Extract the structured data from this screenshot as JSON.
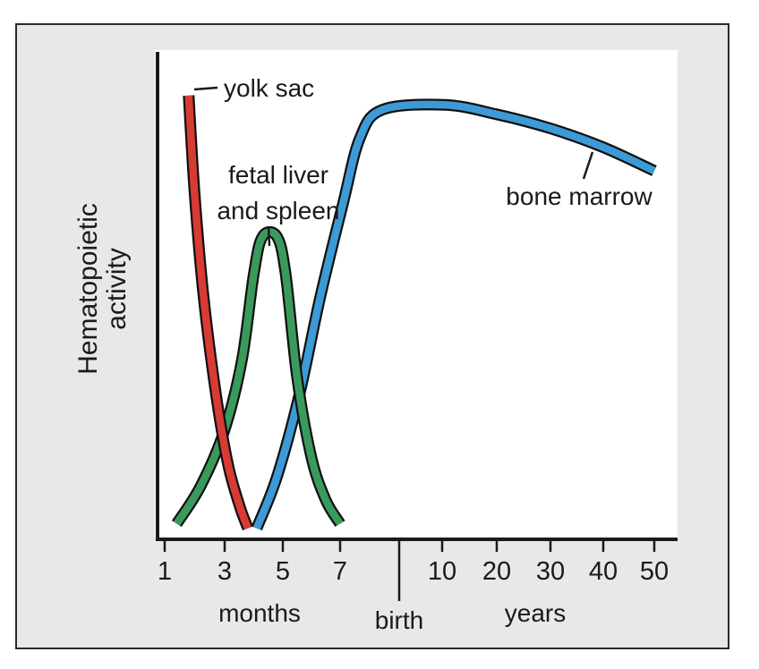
{
  "chart_data": {
    "type": "line",
    "title": "",
    "ylabel": [
      "Hematopoietic",
      "activity"
    ],
    "x_ticks": [
      "1",
      "3",
      "5",
      "7",
      "10",
      "20",
      "30",
      "40",
      "50"
    ],
    "x_group_labels": {
      "months": "months",
      "birth": "birth",
      "years": "years"
    },
    "series": [
      {
        "name": "yolk sac",
        "color": "#d83a34",
        "points": [
          [
            1.8,
            0.93
          ],
          [
            2.0,
            0.72
          ],
          [
            2.3,
            0.5
          ],
          [
            2.7,
            0.3
          ],
          [
            3.1,
            0.15
          ],
          [
            3.5,
            0.06
          ],
          [
            3.8,
            0.01
          ]
        ]
      },
      {
        "name": "fetal liver and spleen",
        "color": "#3a9a5c",
        "points": [
          [
            1.4,
            0.02
          ],
          [
            2.2,
            0.1
          ],
          [
            3.0,
            0.22
          ],
          [
            3.6,
            0.37
          ],
          [
            4.0,
            0.55
          ],
          [
            4.3,
            0.63
          ],
          [
            4.8,
            0.63
          ],
          [
            5.1,
            0.55
          ],
          [
            5.5,
            0.33
          ],
          [
            6.0,
            0.16
          ],
          [
            6.5,
            0.07
          ],
          [
            7.0,
            0.02
          ]
        ]
      },
      {
        "name": "bone marrow",
        "color": "#3d9ad6",
        "points": [
          [
            4.1,
            0.01
          ],
          [
            4.8,
            0.12
          ],
          [
            5.6,
            0.3
          ],
          [
            6.3,
            0.5
          ],
          [
            7.1,
            0.7
          ],
          [
            7.7,
            0.84
          ],
          [
            8.5,
            0.9
          ],
          [
            10.6,
            0.91
          ],
          [
            20,
            0.89
          ],
          [
            30,
            0.86
          ],
          [
            40,
            0.82
          ],
          [
            50,
            0.77
          ]
        ]
      }
    ],
    "annotations": [
      {
        "series": "yolk sac",
        "lines": [
          "yolk sac"
        ]
      },
      {
        "series": "fetal liver and spleen",
        "lines": [
          "fetal liver",
          "and spleen"
        ]
      },
      {
        "series": "bone marrow",
        "lines": [
          "bone marrow"
        ]
      }
    ],
    "grid": false,
    "legend": "none"
  }
}
